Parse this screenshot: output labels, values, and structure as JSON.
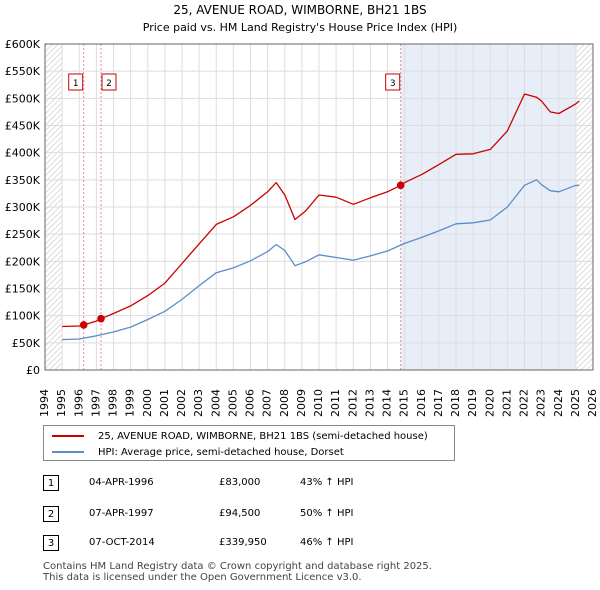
{
  "chart_data": {
    "type": "line",
    "title": "25, AVENUE ROAD, WIMBORNE, BH21 1BS",
    "subtitle": "Price paid vs. HM Land Registry's House Price Index (HPI)",
    "xlim": [
      1994,
      2026
    ],
    "ylim": [
      0,
      600000
    ],
    "x_ticks": [
      "1994",
      "1995",
      "1996",
      "1997",
      "1998",
      "1999",
      "2000",
      "2001",
      "2002",
      "2003",
      "2004",
      "2005",
      "2006",
      "2007",
      "2008",
      "2009",
      "2010",
      "2011",
      "2012",
      "2013",
      "2014",
      "2015",
      "2016",
      "2017",
      "2018",
      "2019",
      "2020",
      "2021",
      "2022",
      "2023",
      "2024",
      "2025",
      "2026"
    ],
    "y_ticks": [
      {
        "value": 0,
        "label": "£0"
      },
      {
        "value": 50000,
        "label": "£50K"
      },
      {
        "value": 100000,
        "label": "£100K"
      },
      {
        "value": 150000,
        "label": "£150K"
      },
      {
        "value": 200000,
        "label": "£200K"
      },
      {
        "value": 250000,
        "label": "£250K"
      },
      {
        "value": 300000,
        "label": "£300K"
      },
      {
        "value": 350000,
        "label": "£350K"
      },
      {
        "value": 400000,
        "label": "£400K"
      },
      {
        "value": 450000,
        "label": "£450K"
      },
      {
        "value": 500000,
        "label": "£500K"
      },
      {
        "value": 550000,
        "label": "£550K"
      },
      {
        "value": 600000,
        "label": "£600K"
      }
    ],
    "grid": true,
    "hatched_regions": [
      [
        1994,
        1995
      ],
      [
        2025,
        2026
      ]
    ],
    "shaded_region": [
      2014.77,
      2025
    ],
    "series": [
      {
        "name": "25, AVENUE ROAD, WIMBORNE, BH21 1BS (semi-detached house)",
        "color": "#cc0000",
        "x": [
          1995,
          1996,
          1996.26,
          1997,
          1997.27,
          1998,
          1999,
          2000,
          2001,
          2002,
          2003,
          2004,
          2005,
          2006,
          2007,
          2007.5,
          2008,
          2008.6,
          2009.2,
          2010,
          2011,
          2012,
          2013,
          2014,
          2014.77,
          2015,
          2016,
          2017,
          2018,
          2019,
          2020,
          2021,
          2022,
          2022.7,
          2023,
          2023.5,
          2024,
          2025,
          2025.2
        ],
        "y": [
          80000,
          81000,
          83000,
          90000,
          94500,
          104000,
          118000,
          137000,
          160000,
          196000,
          232000,
          268000,
          282000,
          303000,
          328000,
          345000,
          322000,
          277000,
          292000,
          322000,
          318000,
          305000,
          317000,
          328000,
          339950,
          345000,
          360000,
          378000,
          397000,
          398000,
          406000,
          440000,
          508000,
          502000,
          495000,
          475000,
          472000,
          490000,
          495000
        ]
      },
      {
        "name": "HPI: Average price, semi-detached house, Dorset",
        "color": "#5b8ec9",
        "x": [
          1995,
          1996,
          1997,
          1998,
          1999,
          2000,
          2001,
          2002,
          2003,
          2004,
          2005,
          2006,
          2007,
          2007.5,
          2008,
          2008.6,
          2009.2,
          2010,
          2011,
          2012,
          2013,
          2014,
          2015,
          2016,
          2017,
          2018,
          2019,
          2020,
          2021,
          2022,
          2022.7,
          2023,
          2023.5,
          2024,
          2025,
          2025.2
        ],
        "y": [
          56000,
          57000,
          63000,
          70000,
          79000,
          93000,
          108000,
          130000,
          155000,
          179000,
          188000,
          201000,
          218000,
          231000,
          220000,
          192000,
          199000,
          212000,
          207000,
          202000,
          210000,
          219000,
          233000,
          244000,
          256000,
          269000,
          271000,
          276000,
          300000,
          340000,
          350000,
          341000,
          330000,
          328000,
          340000,
          340000
        ]
      }
    ],
    "markers": [
      {
        "label": "1",
        "x": 1996.26,
        "y": 83000
      },
      {
        "label": "2",
        "x": 1997.27,
        "y": 94500
      },
      {
        "label": "3",
        "x": 2014.77,
        "y": 339950
      }
    ]
  },
  "legend": {
    "property_label": "25, AVENUE ROAD, WIMBORNE, BH21 1BS (semi-detached house)",
    "hpi_label": "HPI: Average price, semi-detached house, Dorset"
  },
  "transactions": [
    {
      "num": "1",
      "date": "04-APR-1996",
      "price": "£83,000",
      "hpi": "43% ↑ HPI"
    },
    {
      "num": "2",
      "date": "07-APR-1997",
      "price": "£94,500",
      "hpi": "50% ↑ HPI"
    },
    {
      "num": "3",
      "date": "07-OCT-2014",
      "price": "£339,950",
      "hpi": "46% ↑ HPI"
    }
  ],
  "footer": {
    "line1": "Contains HM Land Registry data © Crown copyright and database right 2025.",
    "line2": "This data is licensed under the Open Government Licence v3.0."
  }
}
